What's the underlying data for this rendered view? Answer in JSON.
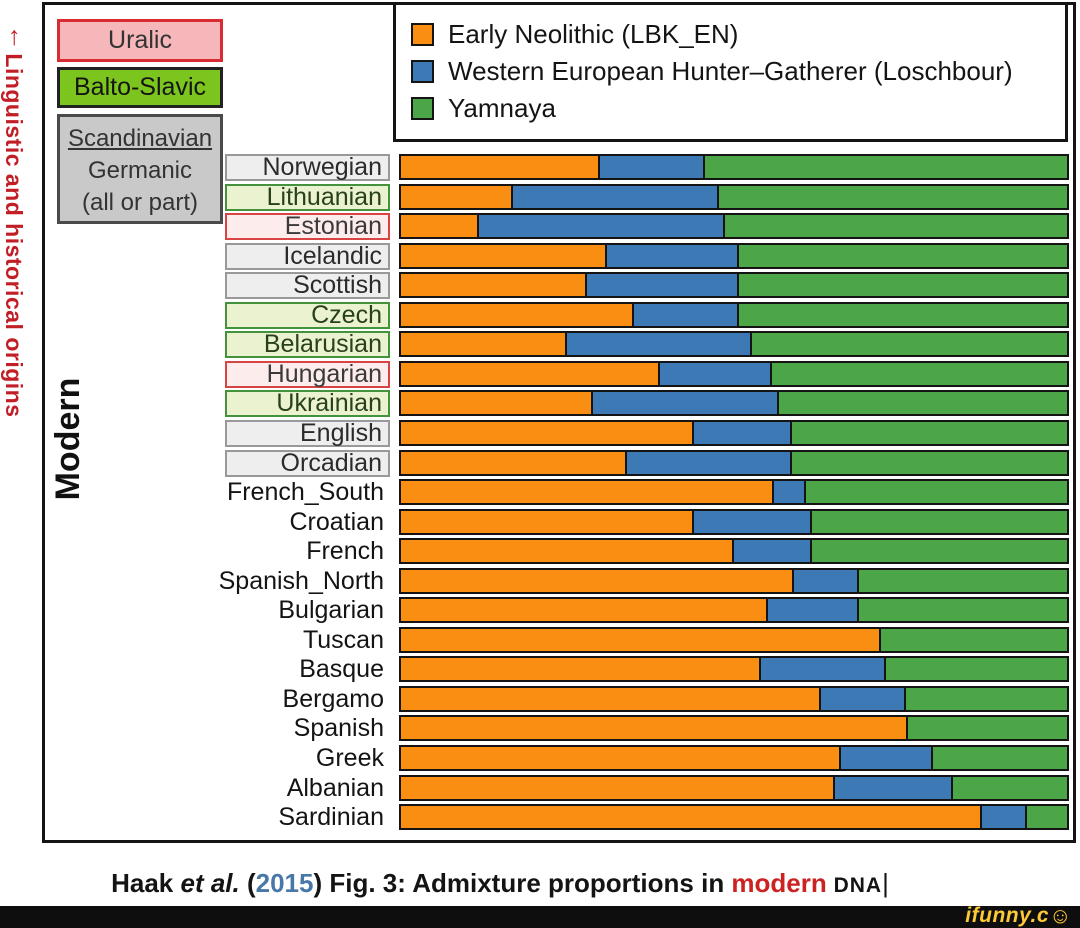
{
  "annotation_left": {
    "arrow": "↑",
    "text": "Linguistic and historical origins"
  },
  "category_boxes": {
    "uralic": {
      "label": "Uralic"
    },
    "balto_slavic": {
      "label": "Balto-Slavic"
    },
    "scandinavian": {
      "lines": [
        "Scandinavian",
        "Germanic",
        "(all or part)"
      ]
    }
  },
  "legend": {
    "items": [
      {
        "label": "Early Neolithic (LBK_EN)",
        "color": "#F98E13"
      },
      {
        "label": "Western European Hunter–Gatherer (Loschbour)",
        "color": "#3D79B4"
      },
      {
        "label": "Yamnaya",
        "color": "#4CA647"
      }
    ]
  },
  "axis_label": "Modern",
  "chart_data": {
    "type": "bar",
    "orientation": "horizontal_stacked",
    "title": "Admixture proportions in modern DNA (Haak et al. 2015, Fig. 3)",
    "value_unit": "percent of ancestry (estimated from bar widths)",
    "series_names": [
      "Early Neolithic (LBK_EN)",
      "Western European Hunter–Gatherer (Loschbour)",
      "Yamnaya"
    ],
    "series_keys": [
      "early-neolithic",
      "whg",
      "yamnaya"
    ],
    "series_colors": [
      "#F98E13",
      "#3D79B4",
      "#4CA647"
    ],
    "categories": [
      "Norwegian",
      "Lithuanian",
      "Estonian",
      "Icelandic",
      "Scottish",
      "Czech",
      "Belarusian",
      "Hungarian",
      "Ukrainian",
      "English",
      "Orcadian",
      "French_South",
      "Croatian",
      "French",
      "Spanish_North",
      "Bulgarian",
      "Tuscan",
      "Basque",
      "Bergamo",
      "Spanish",
      "Greek",
      "Albanian",
      "Sardinian"
    ],
    "values": [
      [
        30,
        16,
        54
      ],
      [
        17,
        31,
        52
      ],
      [
        12,
        37,
        51
      ],
      [
        31,
        20,
        49
      ],
      [
        28,
        23,
        49
      ],
      [
        35,
        16,
        49
      ],
      [
        25,
        28,
        47
      ],
      [
        39,
        17,
        44
      ],
      [
        29,
        28,
        43
      ],
      [
        44,
        15,
        41
      ],
      [
        34,
        25,
        41
      ],
      [
        56,
        5,
        39
      ],
      [
        44,
        18,
        38
      ],
      [
        50,
        12,
        38
      ],
      [
        59,
        10,
        31
      ],
      [
        55,
        14,
        31
      ],
      [
        72,
        0,
        28
      ],
      [
        54,
        19,
        27
      ],
      [
        63,
        13,
        24
      ],
      [
        76,
        0,
        24
      ],
      [
        66,
        14,
        20
      ],
      [
        65,
        18,
        17
      ],
      [
        87,
        7,
        6
      ]
    ],
    "label_box": [
      "gray",
      "green",
      "pink",
      "gray",
      "gray",
      "green",
      "green",
      "pink",
      "green",
      "gray",
      "gray",
      "none",
      "none",
      "none",
      "none",
      "none",
      "none",
      "none",
      "none",
      "none",
      "none",
      "none",
      "none"
    ],
    "label_box_colors": {
      "gray": {
        "fill": "#EEEEEE",
        "border": "#999999"
      },
      "green": {
        "fill": "#EAF2CF",
        "border": "#44923C"
      },
      "pink": {
        "fill": "#FDECEC",
        "border": "#D84343"
      }
    },
    "legend_position": "top-right",
    "grid": false
  },
  "caption": {
    "author": "Haak ",
    "etal": "et al.",
    "paren_open": " (",
    "year": "2015",
    "paren_close": ") ",
    "fig": "Fig. 3:",
    "text": "  Admixture proportions in ",
    "highlight": "modern",
    "dna": " DNA",
    "cursor": "|"
  },
  "footer": {
    "brand": "ifunny.c",
    "smiley": "☺"
  }
}
